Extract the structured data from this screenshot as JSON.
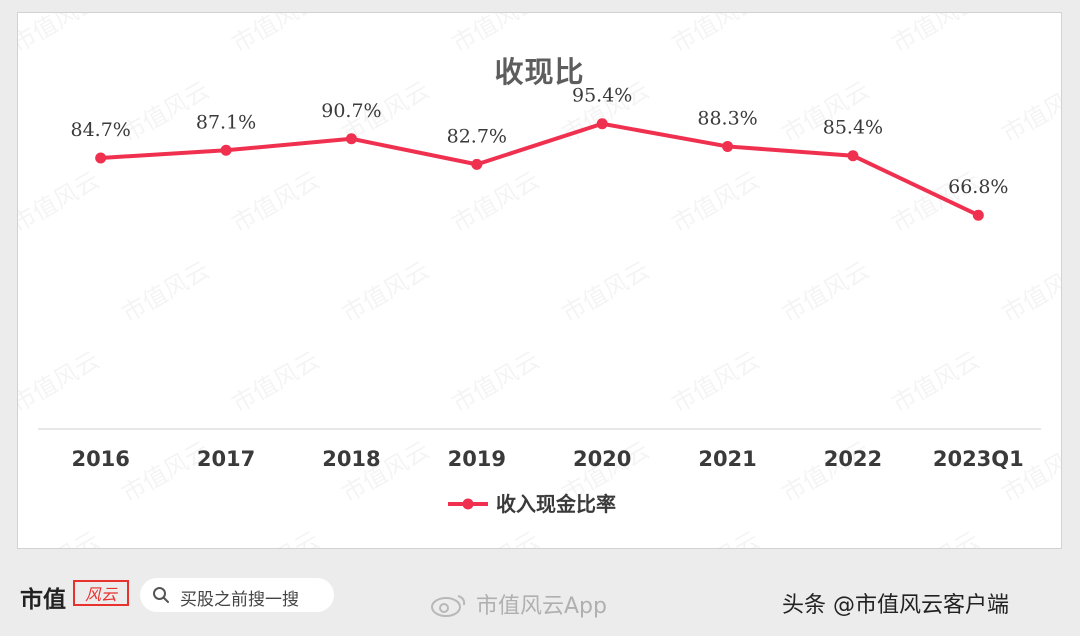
{
  "chart_data": {
    "type": "line",
    "title": "收现比",
    "categories": [
      "2016",
      "2017",
      "2018",
      "2019",
      "2020",
      "2021",
      "2022",
      "2023Q1"
    ],
    "series": [
      {
        "name": "收入现金比率",
        "values": [
          84.7,
          87.1,
          90.7,
          82.7,
          95.4,
          88.3,
          85.4,
          66.8
        ],
        "labels": [
          "84.7%",
          "87.1%",
          "90.7%",
          "82.7%",
          "95.4%",
          "88.3%",
          "85.4%",
          "66.8%"
        ],
        "color": "#f0304f"
      }
    ],
    "ylim": [
      0,
      130
    ],
    "grid": false,
    "legend_position": "bottom"
  },
  "watermark": "市值风云",
  "footer": {
    "brand": "市值",
    "brand_seal": "风云",
    "search_placeholder": "买股之前搜一搜",
    "weibo_label": "市值风云App",
    "toutiao_label": "头条 @市值风云客户端"
  },
  "colors": {
    "series": "#f0304f",
    "text": "#3a3a3a",
    "axis": "#d0d0d0"
  }
}
